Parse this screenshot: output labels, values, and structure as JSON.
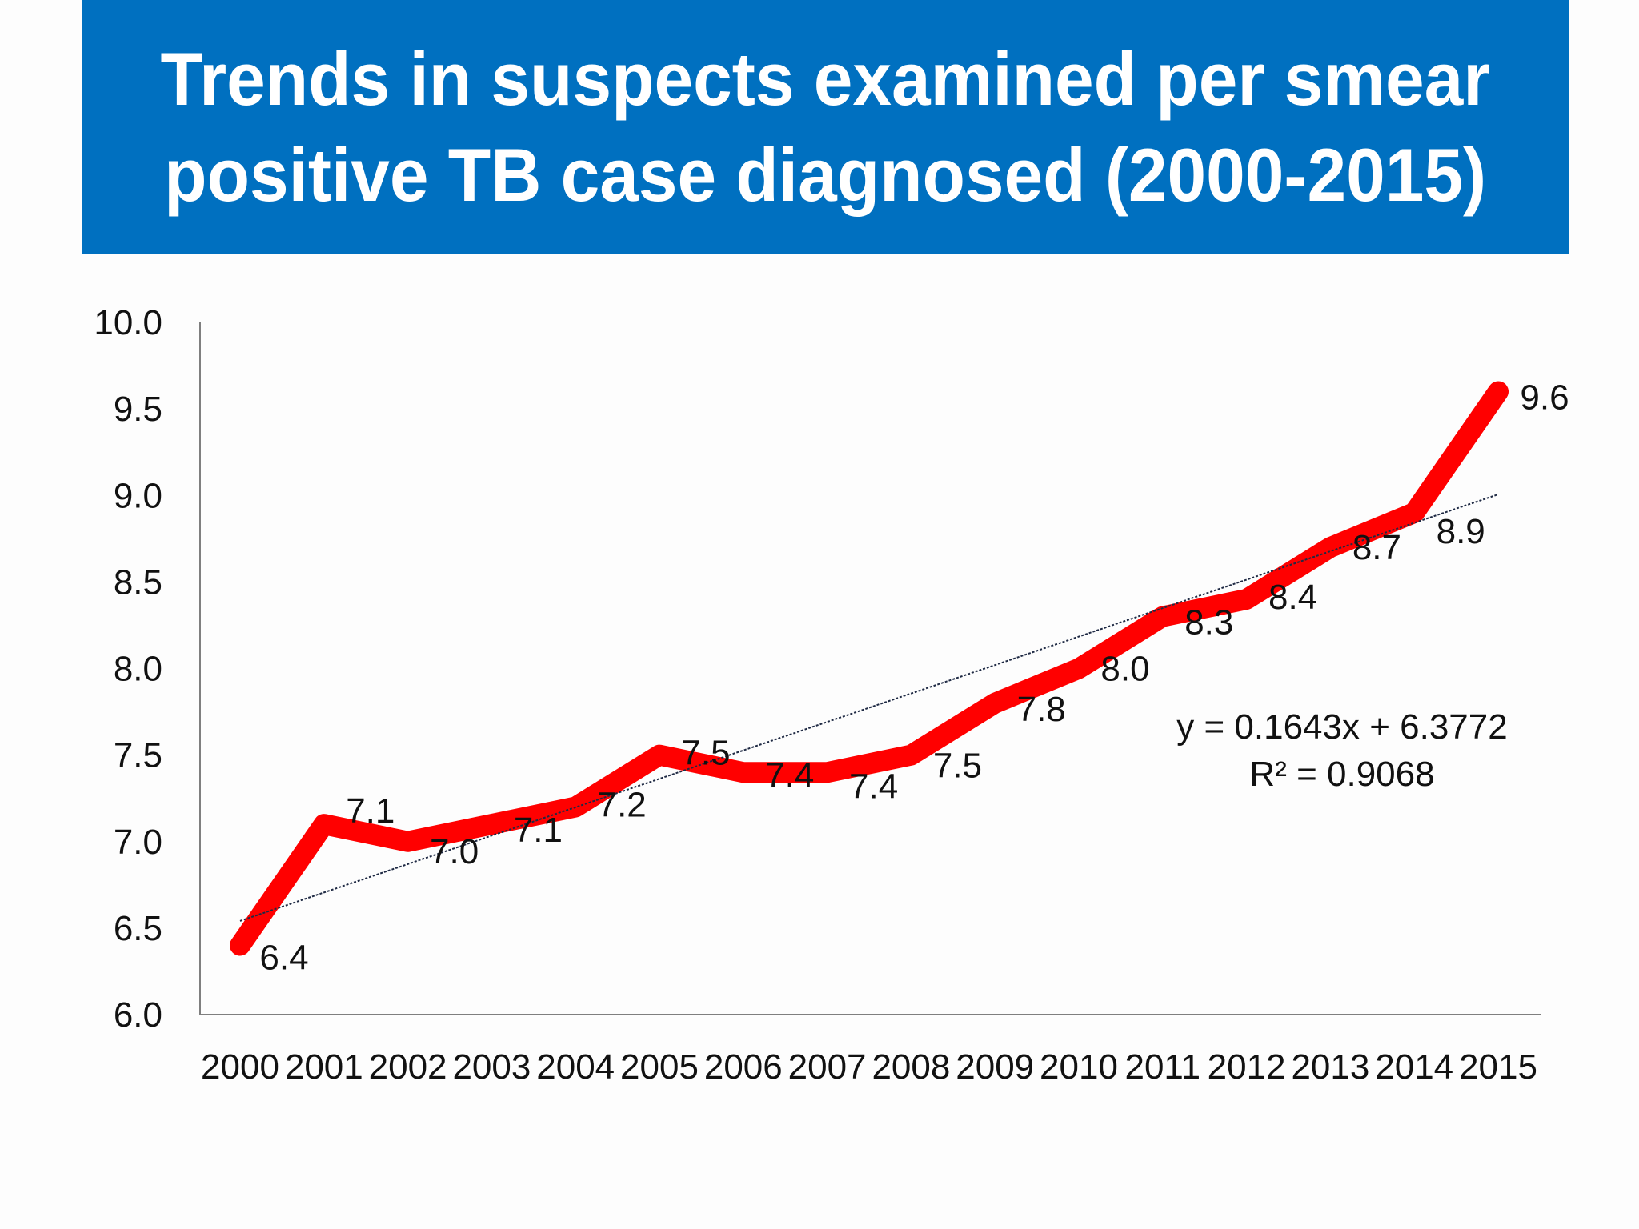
{
  "title": {
    "line1": "Trends in suspects examined per smear",
    "line2": "positive TB case diagnosed (2000-2015)"
  },
  "colors": {
    "banner": "#0070c0",
    "series": "#ff0000",
    "trendline": "#1f2a44",
    "axis": "#7f7f7f"
  },
  "chart_data": {
    "type": "line",
    "x": [
      "2000",
      "2001",
      "2002",
      "2003",
      "2004",
      "2005",
      "2006",
      "2007",
      "2008",
      "2009",
      "2010",
      "2011",
      "2012",
      "2013",
      "2014",
      "2015"
    ],
    "series": [
      {
        "values": [
          6.4,
          7.1,
          7.0,
          7.1,
          7.2,
          7.5,
          7.4,
          7.4,
          7.5,
          7.8,
          8.0,
          8.3,
          8.4,
          8.7,
          8.9,
          9.6
        ]
      }
    ],
    "data_labels": [
      "6.4",
      "7.1",
      "7.0",
      "7.1",
      "7.2",
      "7.5",
      "7.4",
      "7.4",
      "7.5",
      "7.8",
      "8.0",
      "8.3",
      "8.4",
      "8.7",
      "8.9",
      "9.6"
    ],
    "y_ticks": [
      "6.0",
      "6.5",
      "7.0",
      "7.5",
      "8.0",
      "8.5",
      "9.0",
      "9.5",
      "10.0"
    ],
    "ylim": [
      6.0,
      10.0
    ],
    "grid": false,
    "trendline": {
      "type": "linear",
      "slope": 0.1643,
      "intercept": 6.3772,
      "equation": "y = 0.1643x + 6.3772",
      "r_squared": "R² = 0.9068"
    }
  }
}
